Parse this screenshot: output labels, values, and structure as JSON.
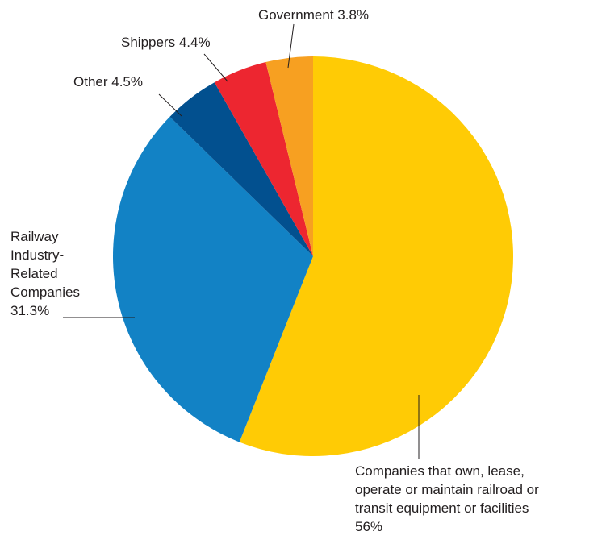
{
  "chart_data": {
    "type": "pie",
    "title": "",
    "start": "top",
    "direction": "clockwise",
    "slices": [
      {
        "key": "companies",
        "value": 56,
        "color": "#FFCB05",
        "label_lines": [
          "Companies that own, lease,",
          "operate or maintain railroad or",
          "transit equipment or facilities",
          "56%"
        ]
      },
      {
        "key": "railway",
        "value": 31.3,
        "color": "#1282C5",
        "label_lines": [
          "Railway",
          "Industry-",
          "Related",
          "Companies",
          "31.3%"
        ]
      },
      {
        "key": "other",
        "value": 4.5,
        "color": "#02508F",
        "label_lines": [
          "Other  4.5%"
        ]
      },
      {
        "key": "shippers",
        "value": 4.4,
        "color": "#ED2630",
        "label_lines": [
          "Shippers  4.4%"
        ]
      },
      {
        "key": "government",
        "value": 3.8,
        "color": "#F7A021",
        "label_lines": [
          "Government 3.8%"
        ]
      }
    ]
  }
}
